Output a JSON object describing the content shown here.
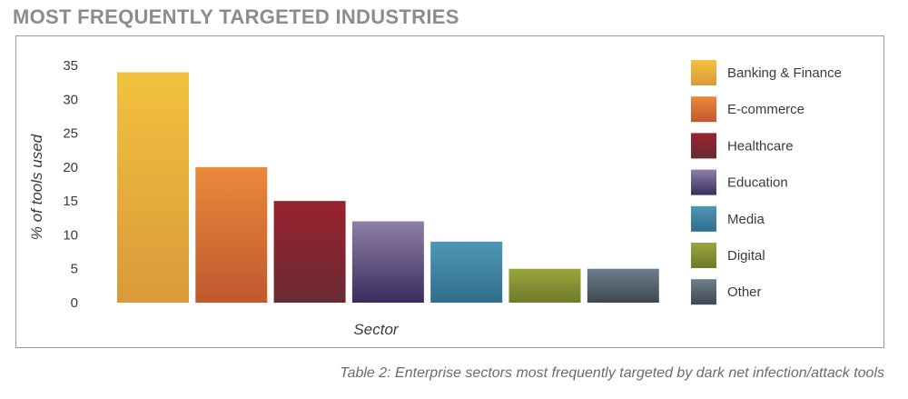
{
  "page": {
    "title": "MOST FREQUENTLY TARGETED INDUSTRIES",
    "caption": "Table 2: Enterprise sectors most frequently targeted by dark net infection/attack tools"
  },
  "chart_data": {
    "type": "bar",
    "categories": [
      "Banking & Finance",
      "E-commerce",
      "Healthcare",
      "Education",
      "Media",
      "Digital",
      "Other"
    ],
    "values": [
      34,
      20,
      15,
      12,
      9,
      5,
      5
    ],
    "xlabel": "Sector",
    "ylabel": "% of tools used",
    "ylim": [
      0,
      35
    ],
    "yticks": [
      0,
      5,
      10,
      15,
      20,
      25,
      30,
      35
    ],
    "grid": false,
    "legend_position": "right",
    "colors": [
      {
        "top": "#f2c23e",
        "bottom": "#d9993a"
      },
      {
        "top": "#e9893a",
        "bottom": "#c0582e"
      },
      {
        "top": "#9a2230",
        "bottom": "#6a2a33"
      },
      {
        "top": "#8e7fa6",
        "bottom": "#3a2d5e"
      },
      {
        "top": "#4f97b6",
        "bottom": "#2f6d8c"
      },
      {
        "top": "#9aa53a",
        "bottom": "#6f7a2a"
      },
      {
        "top": "#6e7e8c",
        "bottom": "#3d4852"
      }
    ]
  }
}
